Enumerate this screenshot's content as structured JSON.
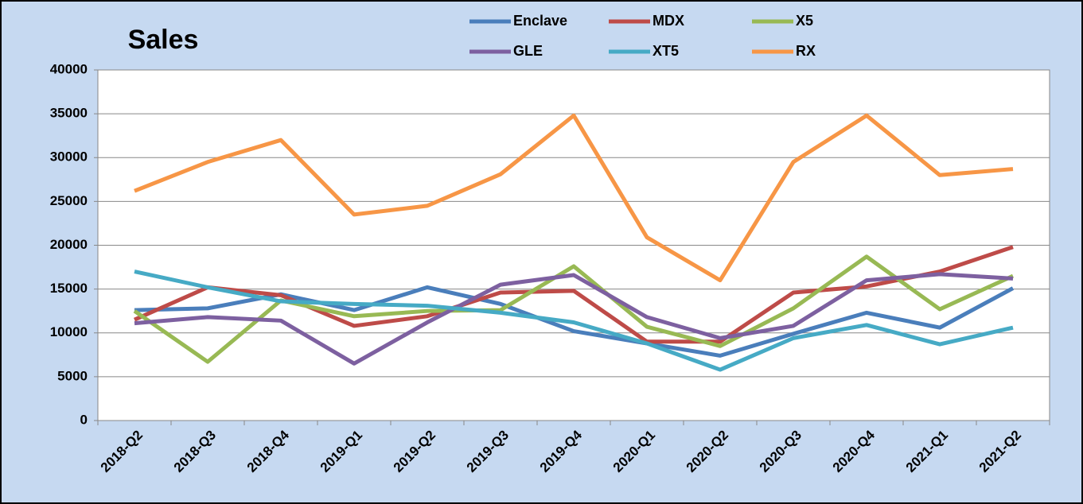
{
  "chart_data": {
    "type": "line",
    "title": "Sales",
    "categories": [
      "2018-Q2",
      "2018-Q3",
      "2018-Q4",
      "2019-Q1",
      "2019-Q2",
      "2019-Q3",
      "2019-Q4",
      "2020-Q1",
      "2020-Q2",
      "2020-Q3",
      "2020-Q4",
      "2021-Q1",
      "2021-Q2"
    ],
    "series": [
      {
        "name": "Enclave",
        "color": "#4a7ebb",
        "values": [
          12600,
          12800,
          14400,
          12600,
          15200,
          13300,
          10200,
          8800,
          7400,
          9900,
          12300,
          10600,
          15100
        ]
      },
      {
        "name": "MDX",
        "color": "#be4b48",
        "values": [
          11500,
          15200,
          14300,
          10800,
          11900,
          14600,
          14800,
          9000,
          9000,
          14600,
          15300,
          17000,
          19800
        ]
      },
      {
        "name": "X5",
        "color": "#98b954",
        "values": [
          12500,
          6700,
          13700,
          11900,
          12500,
          12600,
          17600,
          10700,
          8500,
          12800,
          18700,
          12700,
          16500
        ]
      },
      {
        "name": "GLE",
        "color": "#7d60a0",
        "values": [
          11100,
          11800,
          11400,
          6500,
          11200,
          15500,
          16600,
          11800,
          9400,
          10800,
          16000,
          16700,
          16200
        ]
      },
      {
        "name": "XT5",
        "color": "#46aac5",
        "values": [
          17000,
          15200,
          13600,
          13300,
          13100,
          12300,
          11200,
          8800,
          5800,
          9400,
          10900,
          8700,
          10600
        ]
      },
      {
        "name": "RX",
        "color": "#f79646",
        "values": [
          26200,
          29500,
          32000,
          23500,
          24500,
          28100,
          34800,
          20900,
          16000,
          29500,
          34800,
          28000,
          28700
        ]
      }
    ],
    "ylim": [
      0,
      40000
    ],
    "yticks": [
      0,
      5000,
      10000,
      15000,
      20000,
      25000,
      30000,
      35000,
      40000
    ],
    "grid": true
  }
}
